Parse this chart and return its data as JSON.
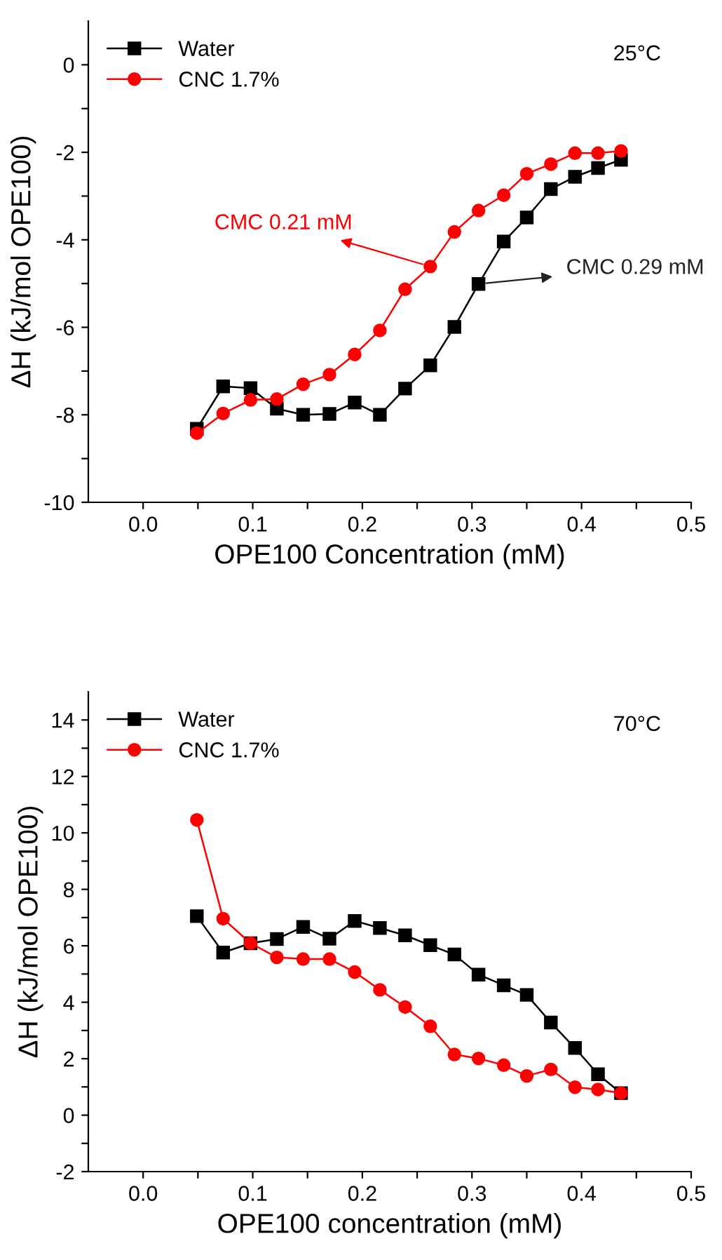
{
  "chart_data": [
    {
      "type": "line",
      "xlabel": "OPE100 Concentration (mM)",
      "ylabel": "ΔH (kJ/mol OPE100)",
      "legend": "top left",
      "grid": false,
      "line_style": "solid",
      "xlim": [
        -0.05,
        0.5
      ],
      "xticks": [
        {
          "value": 0,
          "label": "0.0"
        },
        {
          "value": 0.05,
          "label": null
        },
        0.1,
        {
          "value": 0.15,
          "label": null
        },
        0.2,
        {
          "value": 0.25,
          "label": null
        },
        0.3,
        {
          "value": 0.35,
          "label": null
        },
        0.4,
        {
          "value": 0.45,
          "label": null
        },
        0.5
      ],
      "ylim": [
        -10,
        1
      ],
      "yticks": [
        -10,
        {
          "value": -9,
          "label": null
        },
        -8,
        {
          "value": -7,
          "label": null
        },
        -6,
        {
          "value": -5,
          "label": null
        },
        -4,
        {
          "value": -3,
          "label": null
        },
        -2,
        {
          "value": -1,
          "label": null
        },
        0
      ],
      "x": [
        0.049,
        0.073,
        0.098,
        0.122,
        0.146,
        0.17,
        0.193,
        0.216,
        0.239,
        0.262,
        0.284,
        0.306,
        0.329,
        0.35,
        0.372,
        0.394,
        0.415,
        0.436
      ],
      "series": [
        {
          "name": "Water",
          "color": "#000000",
          "marker": "square",
          "values": [
            -8.32,
            -7.35,
            -7.39,
            -7.86,
            -8.0,
            -7.98,
            -7.72,
            -8.0,
            -7.4,
            -6.87,
            -5.99,
            -5.01,
            -4.04,
            -3.49,
            -2.84,
            -2.56,
            -2.36,
            -2.17
          ]
        },
        {
          "name": "CNC 1.7%",
          "color": "#ff0000",
          "marker": "circle",
          "values": [
            -8.42,
            -7.97,
            -7.66,
            -7.64,
            -7.3,
            -7.08,
            -6.62,
            -6.07,
            -5.13,
            -4.61,
            -3.82,
            -3.33,
            -2.98,
            -2.49,
            -2.27,
            -2.02,
            -2.02,
            -1.97
          ]
        }
      ],
      "annotations": [
        "25°C",
        {
          "text": "CMC 0.21 mM",
          "x": 0.262,
          "y": -4.61
        },
        {
          "text": "CMC 0.29 mM",
          "x": 0.306,
          "y": -5.01
        }
      ]
    },
    {
      "type": "line",
      "xlabel": "OPE100 concentration (mM)",
      "ylabel": "ΔH (kJ/mol OPE100)",
      "legend": "top left",
      "grid": false,
      "line_style": "solid",
      "xlim": [
        -0.05,
        0.5
      ],
      "xticks": [
        {
          "value": 0,
          "label": "0.0"
        },
        {
          "value": 0.05,
          "label": null
        },
        0.1,
        {
          "value": 0.15,
          "label": null
        },
        0.2,
        {
          "value": 0.25,
          "label": null
        },
        0.3,
        {
          "value": 0.35,
          "label": null
        },
        0.4,
        {
          "value": 0.45,
          "label": null
        },
        0.5
      ],
      "ylim": [
        -2,
        15
      ],
      "yticks": [
        -2,
        {
          "value": -1,
          "label": null
        },
        0,
        {
          "value": 1,
          "label": null
        },
        2,
        {
          "value": 3,
          "label": null
        },
        4,
        {
          "value": 5,
          "label": null
        },
        6,
        {
          "value": 7,
          "label": null
        },
        8,
        {
          "value": 9,
          "label": null
        },
        10,
        {
          "value": 11,
          "label": null
        },
        12,
        {
          "value": 13,
          "label": null
        },
        14
      ],
      "x": [
        0.049,
        0.073,
        0.098,
        0.122,
        0.146,
        0.17,
        0.193,
        0.216,
        0.239,
        0.262,
        0.284,
        0.306,
        0.329,
        0.35,
        0.372,
        0.394,
        0.415,
        0.436
      ],
      "series": [
        {
          "name": "Water",
          "color": "#000000",
          "marker": "square",
          "values": [
            7.05,
            5.76,
            6.09,
            6.24,
            6.67,
            6.25,
            6.88,
            6.63,
            6.37,
            6.02,
            5.69,
            4.98,
            4.6,
            4.26,
            3.28,
            2.38,
            1.45,
            0.78
          ]
        },
        {
          "name": "CNC 1.7%",
          "color": "#ff0000",
          "marker": "circle",
          "values": [
            10.46,
            6.96,
            6.09,
            5.59,
            5.53,
            5.53,
            5.07,
            4.44,
            3.83,
            3.15,
            2.15,
            2.01,
            1.77,
            1.39,
            1.62,
            0.99,
            0.91,
            0.78
          ]
        }
      ],
      "annotations": [
        "70°C"
      ]
    }
  ]
}
